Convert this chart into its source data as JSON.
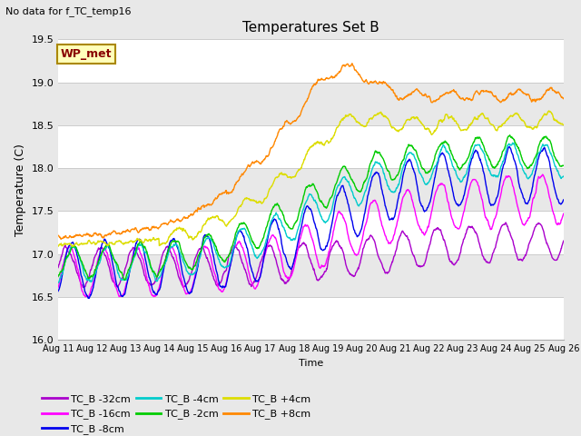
{
  "title": "Temperatures Set B",
  "subtitle": "No data for f_TC_temp16",
  "xlabel": "Time",
  "ylabel": "Temperature (C)",
  "ylim": [
    16.0,
    19.5
  ],
  "annotation": "WP_met",
  "series": [
    {
      "label": "TC_B -32cm",
      "color": "#aa00cc"
    },
    {
      "label": "TC_B -16cm",
      "color": "#ff00ff"
    },
    {
      "label": "TC_B -8cm",
      "color": "#0000ee"
    },
    {
      "label": "TC_B -4cm",
      "color": "#00cccc"
    },
    {
      "label": "TC_B -2cm",
      "color": "#00cc00"
    },
    {
      "label": "TC_B +4cm",
      "color": "#dddd00"
    },
    {
      "label": "TC_B +8cm",
      "color": "#ff8800"
    }
  ],
  "xtick_labels": [
    "Aug 11",
    "Aug 12",
    "Aug 13",
    "Aug 14",
    "Aug 15",
    "Aug 16",
    "Aug 17",
    "Aug 18",
    "Aug 19",
    "Aug 20",
    "Aug 21",
    "Aug 22",
    "Aug 23",
    "Aug 24",
    "Aug 25",
    "Aug 26"
  ],
  "ytick_values": [
    16.0,
    16.5,
    17.0,
    17.5,
    18.0,
    18.5,
    19.0,
    19.5
  ],
  "band_colors": [
    "#ffffff",
    "#e8e8e8"
  ],
  "plot_bg_color": "#e8e8e8",
  "linewidth": 1.0
}
